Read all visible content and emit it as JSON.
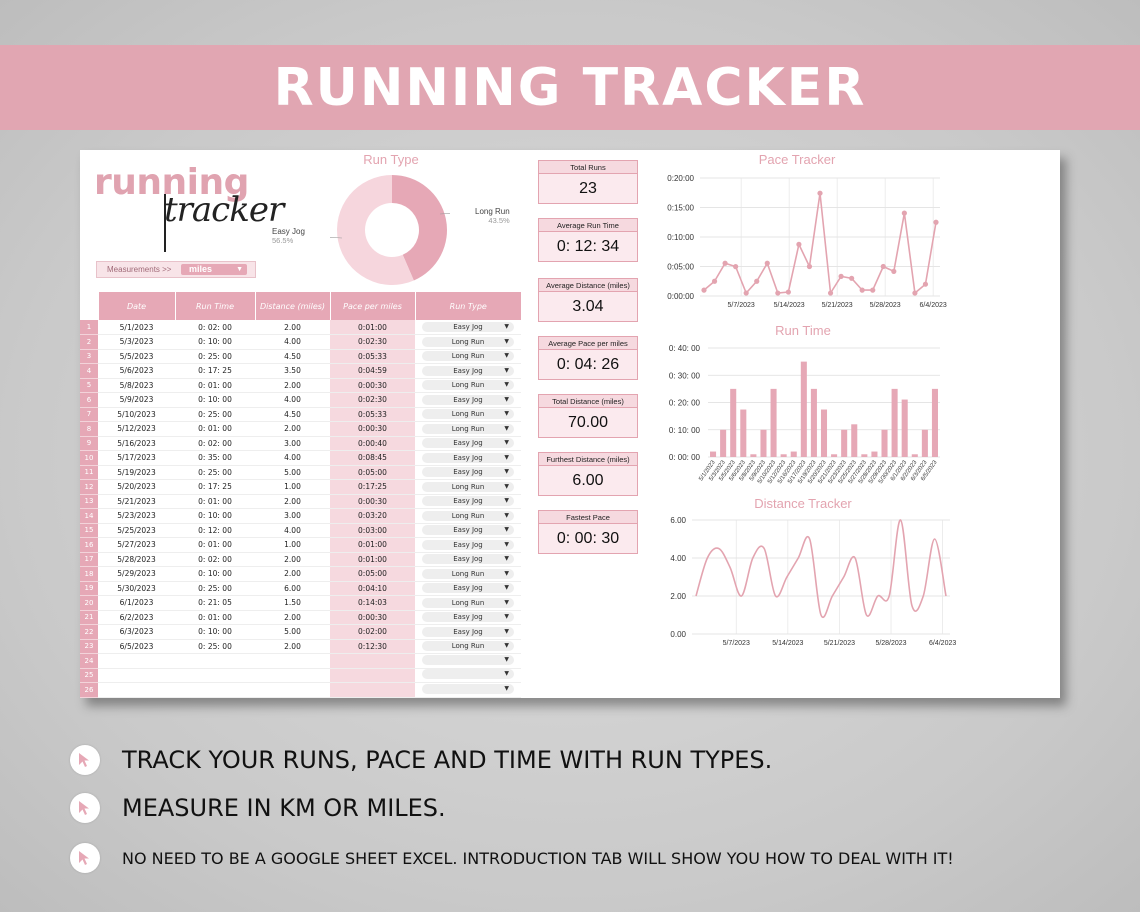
{
  "banner": {
    "title": "RUNNING TRACKER"
  },
  "logo": {
    "line1": "running",
    "line2": "tracker"
  },
  "measurements": {
    "label": "Measurements >>",
    "value": "miles"
  },
  "run_type_chart": {
    "title": "Run Type",
    "slices": [
      {
        "label": "Long Run",
        "percent": "43.5%",
        "value": 43.5,
        "color": "#e6a8b6"
      },
      {
        "label": "Easy Jog",
        "percent": "56.5%",
        "value": 56.5,
        "color": "#f6d6dd"
      }
    ]
  },
  "table": {
    "headers": [
      "Date",
      "Run Time",
      "Distance (miles)",
      "Pace per miles",
      "Run Type"
    ],
    "rows": [
      [
        "1",
        "5/1/2023",
        "0: 02: 00",
        "2.00",
        "0:01:00",
        "Easy Jog"
      ],
      [
        "2",
        "5/3/2023",
        "0: 10: 00",
        "4.00",
        "0:02:30",
        "Long Run"
      ],
      [
        "3",
        "5/5/2023",
        "0: 25: 00",
        "4.50",
        "0:05:33",
        "Long Run"
      ],
      [
        "4",
        "5/6/2023",
        "0: 17: 25",
        "3.50",
        "0:04:59",
        "Easy Jog"
      ],
      [
        "5",
        "5/8/2023",
        "0: 01: 00",
        "2.00",
        "0:00:30",
        "Long Run"
      ],
      [
        "6",
        "5/9/2023",
        "0: 10: 00",
        "4.00",
        "0:02:30",
        "Easy Jog"
      ],
      [
        "7",
        "5/10/2023",
        "0: 25: 00",
        "4.50",
        "0:05:33",
        "Long Run"
      ],
      [
        "8",
        "5/12/2023",
        "0: 01: 00",
        "2.00",
        "0:00:30",
        "Long Run"
      ],
      [
        "9",
        "5/16/2023",
        "0: 02: 00",
        "3.00",
        "0:00:40",
        "Easy Jog"
      ],
      [
        "10",
        "5/17/2023",
        "0: 35: 00",
        "4.00",
        "0:08:45",
        "Easy Jog"
      ],
      [
        "11",
        "5/19/2023",
        "0: 25: 00",
        "5.00",
        "0:05:00",
        "Easy Jog"
      ],
      [
        "12",
        "5/20/2023",
        "0: 17: 25",
        "1.00",
        "0:17:25",
        "Long Run"
      ],
      [
        "13",
        "5/21/2023",
        "0: 01: 00",
        "2.00",
        "0:00:30",
        "Easy Jog"
      ],
      [
        "14",
        "5/23/2023",
        "0: 10: 00",
        "3.00",
        "0:03:20",
        "Long Run"
      ],
      [
        "15",
        "5/25/2023",
        "0: 12: 00",
        "4.00",
        "0:03:00",
        "Easy Jog"
      ],
      [
        "16",
        "5/27/2023",
        "0: 01: 00",
        "1.00",
        "0:01:00",
        "Easy Jog"
      ],
      [
        "17",
        "5/28/2023",
        "0: 02: 00",
        "2.00",
        "0:01:00",
        "Easy Jog"
      ],
      [
        "18",
        "5/29/2023",
        "0: 10: 00",
        "2.00",
        "0:05:00",
        "Long Run"
      ],
      [
        "19",
        "5/30/2023",
        "0: 25: 00",
        "6.00",
        "0:04:10",
        "Easy Jog"
      ],
      [
        "20",
        "6/1/2023",
        "0: 21: 05",
        "1.50",
        "0:14:03",
        "Long Run"
      ],
      [
        "21",
        "6/2/2023",
        "0: 01: 00",
        "2.00",
        "0:00:30",
        "Easy Jog"
      ],
      [
        "22",
        "6/3/2023",
        "0: 10: 00",
        "5.00",
        "0:02:00",
        "Easy Jog"
      ],
      [
        "23",
        "6/5/2023",
        "0: 25: 00",
        "2.00",
        "0:12:30",
        "Long Run"
      ],
      [
        "24",
        "",
        "",
        "",
        "",
        ""
      ],
      [
        "25",
        "",
        "",
        "",
        "",
        ""
      ],
      [
        "26",
        "",
        "",
        "",
        "",
        ""
      ]
    ]
  },
  "stats": [
    {
      "label": "Total Runs",
      "value": "23"
    },
    {
      "label": "Average Run Time",
      "value": "0: 12: 34"
    },
    {
      "label": "Average Distance (miles)",
      "value": "3.04"
    },
    {
      "label": "Average Pace per miles",
      "value": "0: 04: 26"
    },
    {
      "label": "Total Distance (miles)",
      "value": "70.00"
    },
    {
      "label": "Furthest Distance (miles)",
      "value": "6.00"
    },
    {
      "label": "Fastest Pace",
      "value": "0: 00: 30"
    }
  ],
  "chart_data": [
    {
      "type": "line",
      "title": "Pace Tracker",
      "x": [
        "5/1/2023",
        "5/3/2023",
        "5/5/2023",
        "5/6/2023",
        "5/8/2023",
        "5/9/2023",
        "5/10/2023",
        "5/12/2023",
        "5/16/2023",
        "5/17/2023",
        "5/19/2023",
        "5/20/2023",
        "5/21/2023",
        "5/23/2023",
        "5/25/2023",
        "5/27/2023",
        "5/28/2023",
        "5/29/2023",
        "5/30/2023",
        "6/1/2023",
        "6/2/2023",
        "6/3/2023",
        "6/5/2023"
      ],
      "values_minutes": [
        1.0,
        2.5,
        5.55,
        4.98,
        0.5,
        2.5,
        5.55,
        0.5,
        0.67,
        8.75,
        5.0,
        17.42,
        0.5,
        3.33,
        3.0,
        1.0,
        1.0,
        5.0,
        4.17,
        14.05,
        0.5,
        2.0,
        12.5
      ],
      "ytick_labels": [
        "0:00:00",
        "0:05:00",
        "0:10:00",
        "0:15:00",
        "0:20:00"
      ],
      "xtick_labels": [
        "5/7/2023",
        "5/14/2023",
        "5/21/2023",
        "5/28/2023",
        "6/4/2023"
      ],
      "ylim": [
        0,
        20
      ],
      "markers": true,
      "color": "#e3a4b0"
    },
    {
      "type": "bar",
      "title": "Run Time",
      "categories": [
        "5/1/2023",
        "5/3/2023",
        "5/5/2023",
        "5/6/2023",
        "5/8/2023",
        "5/9/2023",
        "5/10/2023",
        "5/12/2023",
        "5/16/2023",
        "5/17/2023",
        "5/19/2023",
        "5/20/2023",
        "5/21/2023",
        "5/23/2023",
        "5/25/2023",
        "5/27/2023",
        "5/28/2023",
        "5/29/2023",
        "5/30/2023",
        "6/1/2023",
        "6/2/2023",
        "6/3/2023",
        "6/5/2023"
      ],
      "values_minutes": [
        2,
        10,
        25,
        17.42,
        1,
        10,
        25,
        1,
        2,
        35,
        25,
        17.42,
        1,
        10,
        12,
        1,
        2,
        10,
        25,
        21.08,
        1,
        10,
        25
      ],
      "ytick_labels": [
        "0: 00: 00",
        "0: 10: 00",
        "0: 20: 00",
        "0: 30: 00",
        "0: 40: 00"
      ],
      "ylim": [
        0,
        40
      ],
      "color": "#e6a8b6"
    },
    {
      "type": "line",
      "title": "Distance Tracker",
      "x": [
        "5/1/2023",
        "5/3/2023",
        "5/5/2023",
        "5/6/2023",
        "5/8/2023",
        "5/9/2023",
        "5/10/2023",
        "5/12/2023",
        "5/16/2023",
        "5/17/2023",
        "5/19/2023",
        "5/20/2023",
        "5/21/2023",
        "5/23/2023",
        "5/25/2023",
        "5/27/2023",
        "5/28/2023",
        "5/29/2023",
        "5/30/2023",
        "6/1/2023",
        "6/2/2023",
        "6/3/2023",
        "6/5/2023"
      ],
      "values": [
        2.0,
        4.0,
        4.5,
        3.5,
        2.0,
        4.0,
        4.5,
        2.0,
        3.0,
        4.0,
        5.0,
        1.0,
        2.0,
        3.0,
        4.0,
        1.0,
        2.0,
        2.0,
        6.0,
        1.5,
        2.0,
        5.0,
        2.0
      ],
      "ytick_labels": [
        "0.00",
        "2.00",
        "4.00",
        "6.00"
      ],
      "xtick_labels": [
        "5/7/2023",
        "5/14/2023",
        "5/21/2023",
        "5/28/2023",
        "6/4/2023"
      ],
      "ylim": [
        0,
        6
      ],
      "smooth": true,
      "color": "#e3a4b0"
    }
  ],
  "bullets": [
    "TRACK YOUR RUNS, PACE AND TIME WITH RUN TYPES.",
    "MEASURE IN KM OR MILES.",
    "NO NEED TO BE A GOOGLE SHEET EXCEL. INTRODUCTION TAB WILL SHOW YOU HOW TO DEAL WITH IT!"
  ]
}
